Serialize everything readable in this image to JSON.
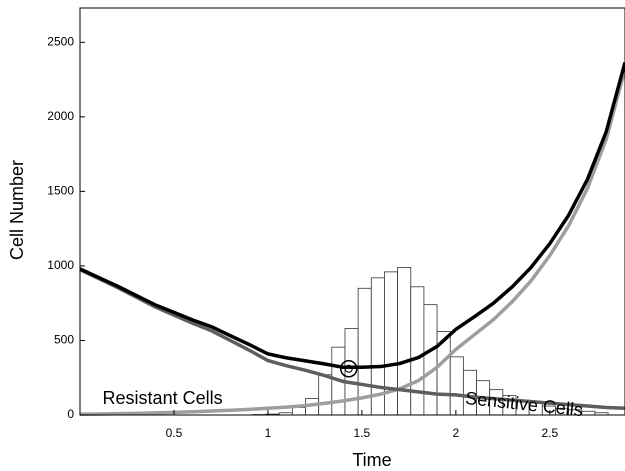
{
  "chart_data": {
    "type": "line",
    "xlabel": "Time",
    "ylabel": "Cell Number",
    "x": [
      0,
      0.1,
      0.2,
      0.3,
      0.4,
      0.5,
      0.6,
      0.7,
      0.8,
      0.9,
      1.0,
      1.1,
      1.2,
      1.3,
      1.4,
      1.5,
      1.6,
      1.7,
      1.8,
      1.9,
      2.0,
      2.1,
      2.2,
      2.3,
      2.4,
      2.5,
      2.6,
      2.7,
      2.8,
      2.9
    ],
    "series": [
      {
        "color": "#9e9e9e",
        "values": [
          5,
          7,
          9,
          11,
          14,
          18,
          22,
          27,
          32,
          38,
          45,
          53,
          63,
          78,
          95,
          115,
          140,
          175,
          230,
          320,
          440,
          540,
          640,
          760,
          900,
          1070,
          1270,
          1520,
          1850,
          2320
        ]
      },
      {
        "color": "#5e5e5e",
        "values": [
          975,
          915,
          855,
          790,
          725,
          670,
          615,
          565,
          500,
          435,
          365,
          330,
          300,
          265,
          225,
          205,
          185,
          170,
          155,
          140,
          135,
          120,
          110,
          100,
          90,
          80,
          70,
          60,
          50,
          45
        ]
      },
      {
        "color": "#000000",
        "values": [
          980,
          922,
          864,
          801,
          739,
          688,
          637,
          592,
          532,
          473,
          410,
          383,
          363,
          343,
          320,
          320,
          325,
          345,
          385,
          460,
          575,
          660,
          750,
          860,
          990,
          1150,
          1340,
          1580,
          1900,
          2365
        ]
      }
    ],
    "histogram": {
      "bins": [
        0.92,
        0.99,
        1.06,
        1.13,
        1.2,
        1.27,
        1.34,
        1.41,
        1.48,
        1.55,
        1.62,
        1.69,
        1.76,
        1.83,
        1.9,
        1.97,
        2.04,
        2.11,
        2.18,
        2.25,
        2.32,
        2.39,
        2.46,
        2.53,
        2.6,
        2.67,
        2.74,
        2.81
      ],
      "counts": [
        3,
        6,
        15,
        50,
        110,
        270,
        455,
        580,
        850,
        920,
        960,
        990,
        860,
        740,
        560,
        390,
        300,
        230,
        170,
        130,
        100,
        80,
        60,
        45,
        35,
        25,
        15
      ]
    },
    "marker": {
      "x": 1.43,
      "y": 310
    },
    "annotations": [
      {
        "text": "Resistant Cells",
        "x": 0.12,
        "y": 160
      },
      {
        "text": "Sensitive Cells",
        "x": 2.05,
        "y": 160
      }
    ],
    "xlim": [
      0,
      2.9
    ],
    "ylim": [
      0,
      2730
    ],
    "xticks": [
      0.5,
      1,
      1.5,
      2,
      2.5
    ],
    "yticks": [
      0,
      500,
      1000,
      1500,
      2000,
      2500
    ]
  }
}
